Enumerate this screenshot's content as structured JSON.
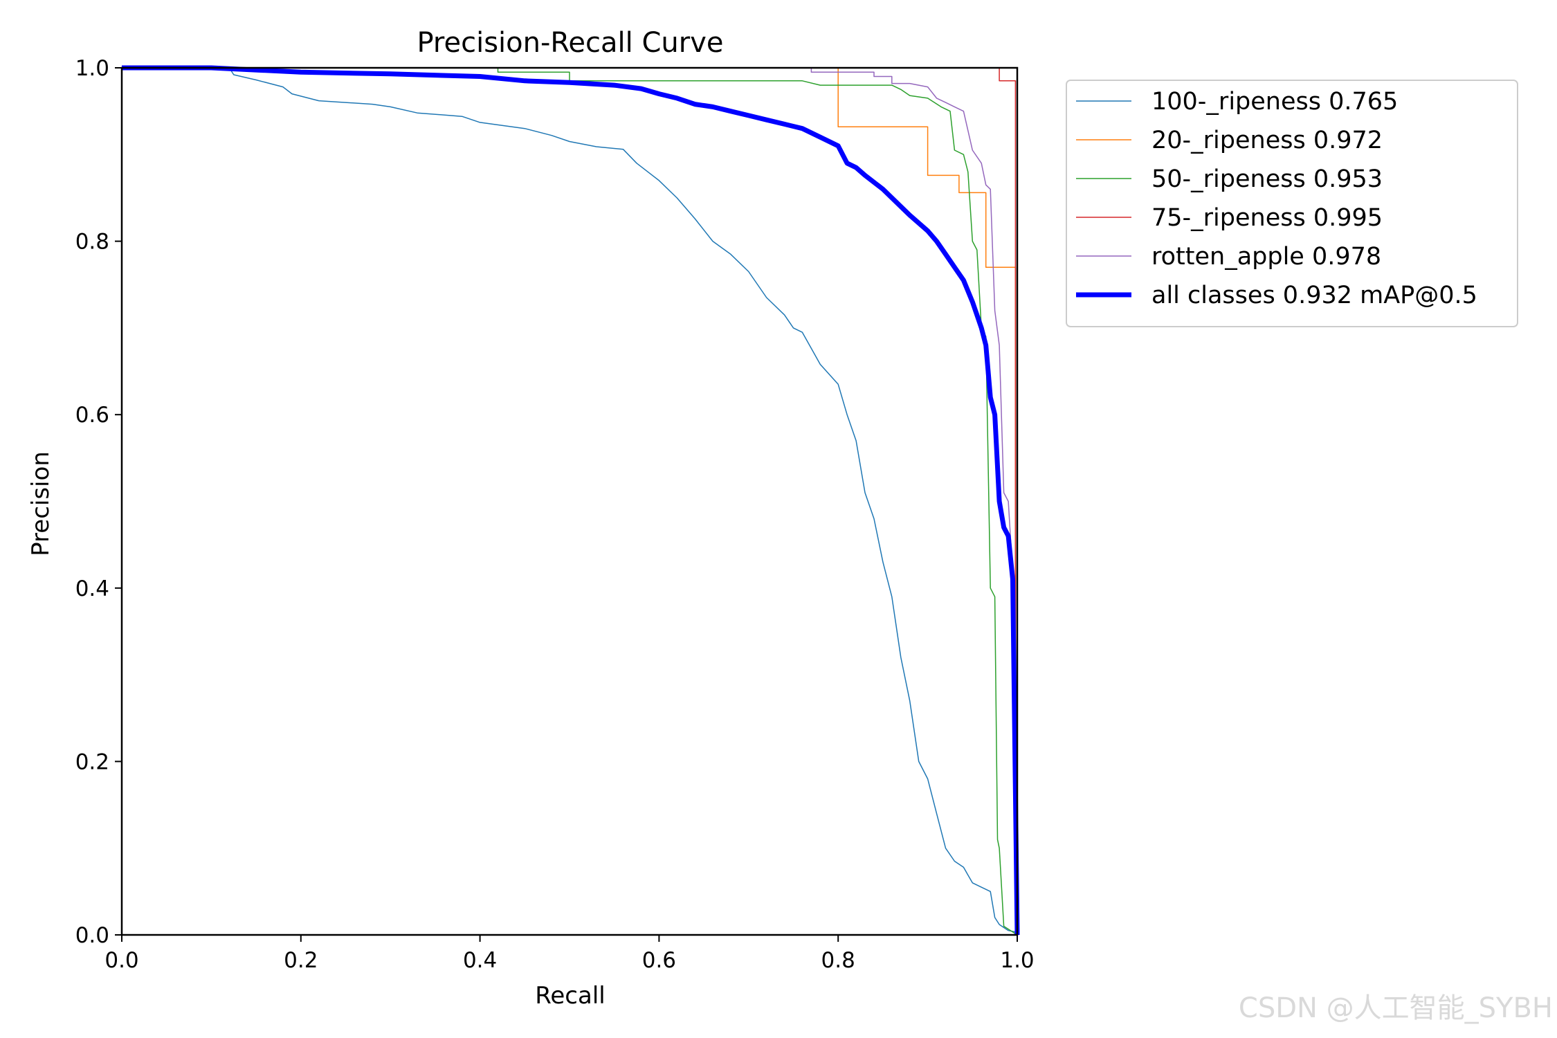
{
  "chart_data": {
    "type": "line",
    "title": "Precision-Recall Curve",
    "xlabel": "Recall",
    "ylabel": "Precision",
    "xlim": [
      0,
      1
    ],
    "ylim": [
      0,
      1
    ],
    "xticks": [
      "0.0",
      "0.2",
      "0.4",
      "0.6",
      "0.8",
      "1.0"
    ],
    "yticks": [
      "0.0",
      "0.2",
      "0.4",
      "0.6",
      "0.8",
      "1.0"
    ],
    "grid": false,
    "legend_position": "outside-top-right",
    "series": [
      {
        "name": "100-_ripeness 0.765",
        "color": "#1f77b4",
        "width": 1.5,
        "points": [
          [
            0,
            1
          ],
          [
            0.12,
            1
          ],
          [
            0.125,
            0.992
          ],
          [
            0.15,
            0.986
          ],
          [
            0.18,
            0.978
          ],
          [
            0.19,
            0.97
          ],
          [
            0.22,
            0.962
          ],
          [
            0.28,
            0.958
          ],
          [
            0.3,
            0.955
          ],
          [
            0.33,
            0.948
          ],
          [
            0.38,
            0.944
          ],
          [
            0.4,
            0.937
          ],
          [
            0.45,
            0.93
          ],
          [
            0.48,
            0.922
          ],
          [
            0.5,
            0.915
          ],
          [
            0.53,
            0.909
          ],
          [
            0.56,
            0.906
          ],
          [
            0.575,
            0.89
          ],
          [
            0.6,
            0.87
          ],
          [
            0.62,
            0.85
          ],
          [
            0.64,
            0.826
          ],
          [
            0.66,
            0.8
          ],
          [
            0.68,
            0.785
          ],
          [
            0.7,
            0.765
          ],
          [
            0.72,
            0.735
          ],
          [
            0.74,
            0.715
          ],
          [
            0.75,
            0.7
          ],
          [
            0.76,
            0.695
          ],
          [
            0.78,
            0.658
          ],
          [
            0.8,
            0.635
          ],
          [
            0.81,
            0.6
          ],
          [
            0.82,
            0.57
          ],
          [
            0.83,
            0.51
          ],
          [
            0.84,
            0.48
          ],
          [
            0.85,
            0.43
          ],
          [
            0.86,
            0.39
          ],
          [
            0.87,
            0.32
          ],
          [
            0.88,
            0.27
          ],
          [
            0.89,
            0.2
          ],
          [
            0.9,
            0.18
          ],
          [
            0.91,
            0.14
          ],
          [
            0.92,
            0.1
          ],
          [
            0.93,
            0.085
          ],
          [
            0.94,
            0.078
          ],
          [
            0.95,
            0.06
          ],
          [
            0.96,
            0.055
          ],
          [
            0.97,
            0.05
          ],
          [
            0.975,
            0.02
          ],
          [
            0.98,
            0.012
          ],
          [
            0.99,
            0.005
          ],
          [
            1,
            0.003
          ]
        ]
      },
      {
        "name": "20-_ripeness 0.972",
        "color": "#ff7f0e",
        "width": 1.5,
        "points": [
          [
            0,
            1
          ],
          [
            0.8,
            1
          ],
          [
            0.8,
            0.932
          ],
          [
            0.9,
            0.932
          ],
          [
            0.9,
            0.876
          ],
          [
            0.935,
            0.876
          ],
          [
            0.935,
            0.856
          ],
          [
            0.965,
            0.856
          ],
          [
            0.965,
            0.77
          ],
          [
            0.998,
            0.77
          ],
          [
            0.998,
            0.0
          ]
        ]
      },
      {
        "name": "50-_ripeness 0.953",
        "color": "#2ca02c",
        "width": 1.5,
        "points": [
          [
            0,
            1
          ],
          [
            0.42,
            1
          ],
          [
            0.42,
            0.995
          ],
          [
            0.5,
            0.995
          ],
          [
            0.5,
            0.985
          ],
          [
            0.76,
            0.985
          ],
          [
            0.78,
            0.98
          ],
          [
            0.86,
            0.98
          ],
          [
            0.87,
            0.975
          ],
          [
            0.88,
            0.968
          ],
          [
            0.9,
            0.965
          ],
          [
            0.915,
            0.955
          ],
          [
            0.925,
            0.95
          ],
          [
            0.93,
            0.905
          ],
          [
            0.94,
            0.9
          ],
          [
            0.945,
            0.88
          ],
          [
            0.95,
            0.8
          ],
          [
            0.955,
            0.79
          ],
          [
            0.96,
            0.7
          ],
          [
            0.965,
            0.69
          ],
          [
            0.97,
            0.4
          ],
          [
            0.975,
            0.39
          ],
          [
            0.978,
            0.11
          ],
          [
            0.98,
            0.1
          ],
          [
            0.985,
            0.01
          ],
          [
            1,
            0.0
          ]
        ]
      },
      {
        "name": "75-_ripeness 0.995",
        "color": "#d62728",
        "width": 1.5,
        "points": [
          [
            0,
            1
          ],
          [
            0.98,
            1
          ],
          [
            0.98,
            0.985
          ],
          [
            0.998,
            0.985
          ],
          [
            0.998,
            0.0
          ]
        ]
      },
      {
        "name": "rotten_apple 0.978",
        "color": "#9467bd",
        "width": 1.5,
        "points": [
          [
            0,
            1
          ],
          [
            0.77,
            1
          ],
          [
            0.77,
            0.995
          ],
          [
            0.84,
            0.995
          ],
          [
            0.84,
            0.99
          ],
          [
            0.86,
            0.99
          ],
          [
            0.86,
            0.982
          ],
          [
            0.88,
            0.982
          ],
          [
            0.9,
            0.978
          ],
          [
            0.91,
            0.965
          ],
          [
            0.92,
            0.96
          ],
          [
            0.93,
            0.955
          ],
          [
            0.94,
            0.95
          ],
          [
            0.95,
            0.905
          ],
          [
            0.96,
            0.89
          ],
          [
            0.965,
            0.865
          ],
          [
            0.97,
            0.86
          ],
          [
            0.975,
            0.72
          ],
          [
            0.98,
            0.68
          ],
          [
            0.985,
            0.51
          ],
          [
            0.99,
            0.5
          ],
          [
            0.993,
            0.45
          ],
          [
            0.995,
            0.3
          ],
          [
            0.997,
            0.29
          ],
          [
            1,
            0.0
          ]
        ]
      },
      {
        "name": "all classes 0.932 mAP@0.5",
        "color": "#0000ff",
        "width": 7,
        "points": [
          [
            0,
            1
          ],
          [
            0.1,
            1
          ],
          [
            0.2,
            0.995
          ],
          [
            0.3,
            0.993
          ],
          [
            0.4,
            0.99
          ],
          [
            0.45,
            0.985
          ],
          [
            0.5,
            0.983
          ],
          [
            0.55,
            0.98
          ],
          [
            0.58,
            0.976
          ],
          [
            0.6,
            0.97
          ],
          [
            0.62,
            0.965
          ],
          [
            0.64,
            0.958
          ],
          [
            0.66,
            0.955
          ],
          [
            0.68,
            0.95
          ],
          [
            0.7,
            0.945
          ],
          [
            0.72,
            0.94
          ],
          [
            0.74,
            0.935
          ],
          [
            0.76,
            0.93
          ],
          [
            0.78,
            0.92
          ],
          [
            0.8,
            0.91
          ],
          [
            0.81,
            0.89
          ],
          [
            0.82,
            0.885
          ],
          [
            0.83,
            0.876
          ],
          [
            0.85,
            0.86
          ],
          [
            0.87,
            0.84
          ],
          [
            0.88,
            0.83
          ],
          [
            0.9,
            0.812
          ],
          [
            0.91,
            0.8
          ],
          [
            0.92,
            0.785
          ],
          [
            0.93,
            0.77
          ],
          [
            0.94,
            0.755
          ],
          [
            0.95,
            0.73
          ],
          [
            0.96,
            0.7
          ],
          [
            0.965,
            0.68
          ],
          [
            0.97,
            0.62
          ],
          [
            0.975,
            0.6
          ],
          [
            0.98,
            0.5
          ],
          [
            0.985,
            0.47
          ],
          [
            0.99,
            0.46
          ],
          [
            0.995,
            0.41
          ],
          [
            1,
            0.0
          ]
        ]
      }
    ]
  },
  "watermark": "CSDN @人工智能_SYBH"
}
